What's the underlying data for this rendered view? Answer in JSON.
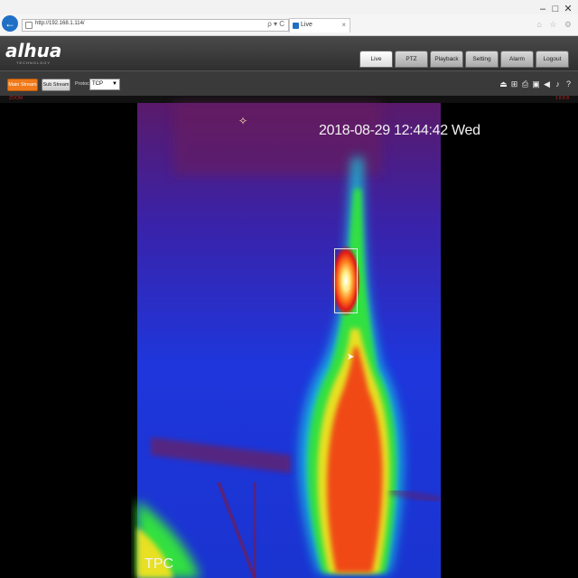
{
  "window": {
    "minimize": "–",
    "maximize": "□",
    "close": "✕"
  },
  "browser": {
    "back": "←",
    "address": "http://192.168.1.114/",
    "address_icons": "ρ ▾ C",
    "tab_label": "Live",
    "tab_close": "×",
    "toolbar_icons": "⌂ ☆ ⚙"
  },
  "app": {
    "logo": "alhua",
    "logo_sub": "TECHNOLOGY",
    "nav": [
      {
        "label": "Live"
      },
      {
        "label": "PTZ"
      },
      {
        "label": "Playback"
      },
      {
        "label": "Setting"
      },
      {
        "label": "Alarm"
      },
      {
        "label": "Logout"
      }
    ]
  },
  "stream": {
    "main_label": "Main Stream",
    "sub_label": "Sub Stream",
    "protocol_label": "Protocol",
    "protocol_value": "TCP",
    "tools": [
      "⏏",
      "⊞",
      "⎙",
      "▣",
      "◀",
      "♪",
      "?"
    ]
  },
  "status": {
    "left": "ZOOM",
    "right": "1 8 8 8"
  },
  "video": {
    "timestamp": "2018-08-29 12:44:42 Wed",
    "channel_name": "TPC",
    "crosshair": "✧"
  },
  "colors": {
    "accent": "#f07a1a",
    "header": "#3a3a3a",
    "status_red": "#c0282a"
  }
}
